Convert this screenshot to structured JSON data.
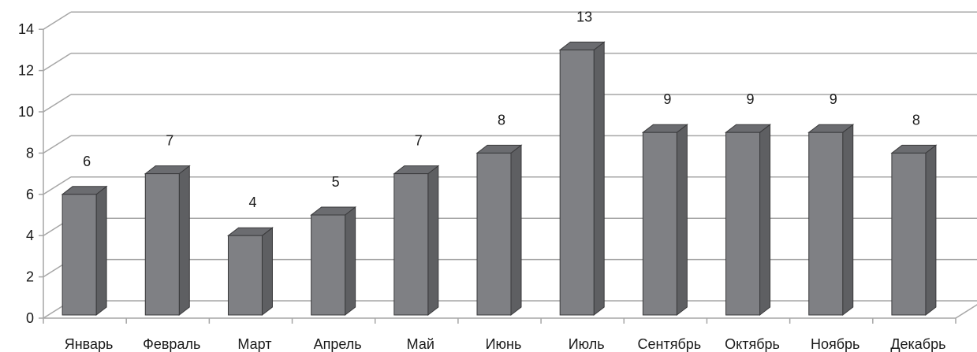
{
  "chart_data": {
    "type": "bar",
    "style": "3d-column",
    "categories": [
      "Январь",
      "Февраль",
      "Март",
      "Апрель",
      "Май",
      "Июнь",
      "Июль",
      "Сентябрь",
      "Октябрь",
      "Ноябрь",
      "Декабрь"
    ],
    "values": [
      6,
      7,
      4,
      5,
      7,
      8,
      13,
      9,
      9,
      9,
      8
    ],
    "data_labels": [
      "6",
      "7",
      "4",
      "5",
      "7",
      "8",
      "13",
      "9",
      "9",
      "9",
      "8"
    ],
    "title": "",
    "xlabel": "",
    "ylabel": "",
    "ylim": [
      0,
      14
    ],
    "yticks": [
      "0",
      "2",
      "4",
      "6",
      "8",
      "10",
      "12",
      "14"
    ],
    "grid": true,
    "legend": "none",
    "colors": {
      "bar_front": "#7f8084",
      "bar_side": "#5e5f62",
      "bar_top": "#6b6c70",
      "bar_edge": "#3a3a3c",
      "grid": "#a6a6a6",
      "text": "#1a1a1a",
      "background": "#ffffff"
    }
  }
}
